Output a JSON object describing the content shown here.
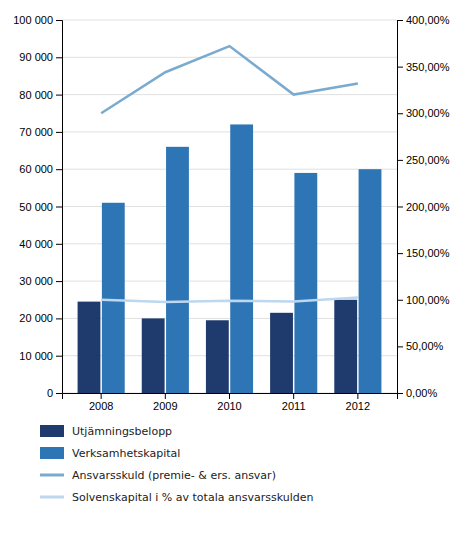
{
  "chart_data": {
    "type": "bar",
    "categories": [
      "2008",
      "2009",
      "2010",
      "2011",
      "2012"
    ],
    "series": [
      {
        "name": "Utjämningsbelopp",
        "type": "bar",
        "color": "#1F3B6E",
        "values": [
          24500,
          20000,
          19500,
          21500,
          25000
        ]
      },
      {
        "name": "Verksamhetskapital",
        "type": "bar",
        "color": "#2E75B6",
        "values": [
          51000,
          66000,
          72000,
          59000,
          60000
        ]
      },
      {
        "name": "Ansvarsskuld (premie- & ers. ansvar)",
        "type": "line",
        "color": "#7AABCF",
        "values": [
          75000,
          86000,
          93000,
          80000,
          83000
        ]
      },
      {
        "name": "Solvenskapital i % av totala ansvarsskulden",
        "type": "line",
        "axis": "y2",
        "color": "#BDD7EE",
        "values": [
          1.0,
          0.975,
          0.99,
          0.98,
          1.025
        ]
      }
    ],
    "ylim": [
      0,
      100000
    ],
    "yticks": [
      0,
      {
        "value": 10000,
        "label": "10 000"
      },
      {
        "value": 20000,
        "label": "20 000"
      },
      {
        "value": 30000,
        "label": "30 000"
      },
      {
        "value": 40000,
        "label": "40 000"
      },
      {
        "value": 50000,
        "label": "50 000"
      },
      {
        "value": 60000,
        "label": "60 000"
      },
      {
        "value": 70000,
        "label": "70 000"
      },
      {
        "value": 80000,
        "label": "80 000"
      },
      {
        "value": 90000,
        "label": "90 000"
      },
      {
        "value": 100000,
        "label": "100 000"
      }
    ],
    "y2lim": [
      0,
      4.0
    ],
    "y2ticks": [
      {
        "value": 0.0,
        "label": "0,00%"
      },
      {
        "value": 0.5,
        "label": "50,00%"
      },
      {
        "value": 1.0,
        "label": "100,00%"
      },
      {
        "value": 1.5,
        "label": "150,00%"
      },
      {
        "value": 2.0,
        "label": "200,00%"
      },
      {
        "value": 2.5,
        "label": "250,00%"
      },
      {
        "value": 3.0,
        "label": "300,00%"
      },
      {
        "value": 3.5,
        "label": "350,00%"
      },
      {
        "value": 4.0,
        "label": "400,00%"
      }
    ],
    "grid": true,
    "legend": "bottom"
  }
}
